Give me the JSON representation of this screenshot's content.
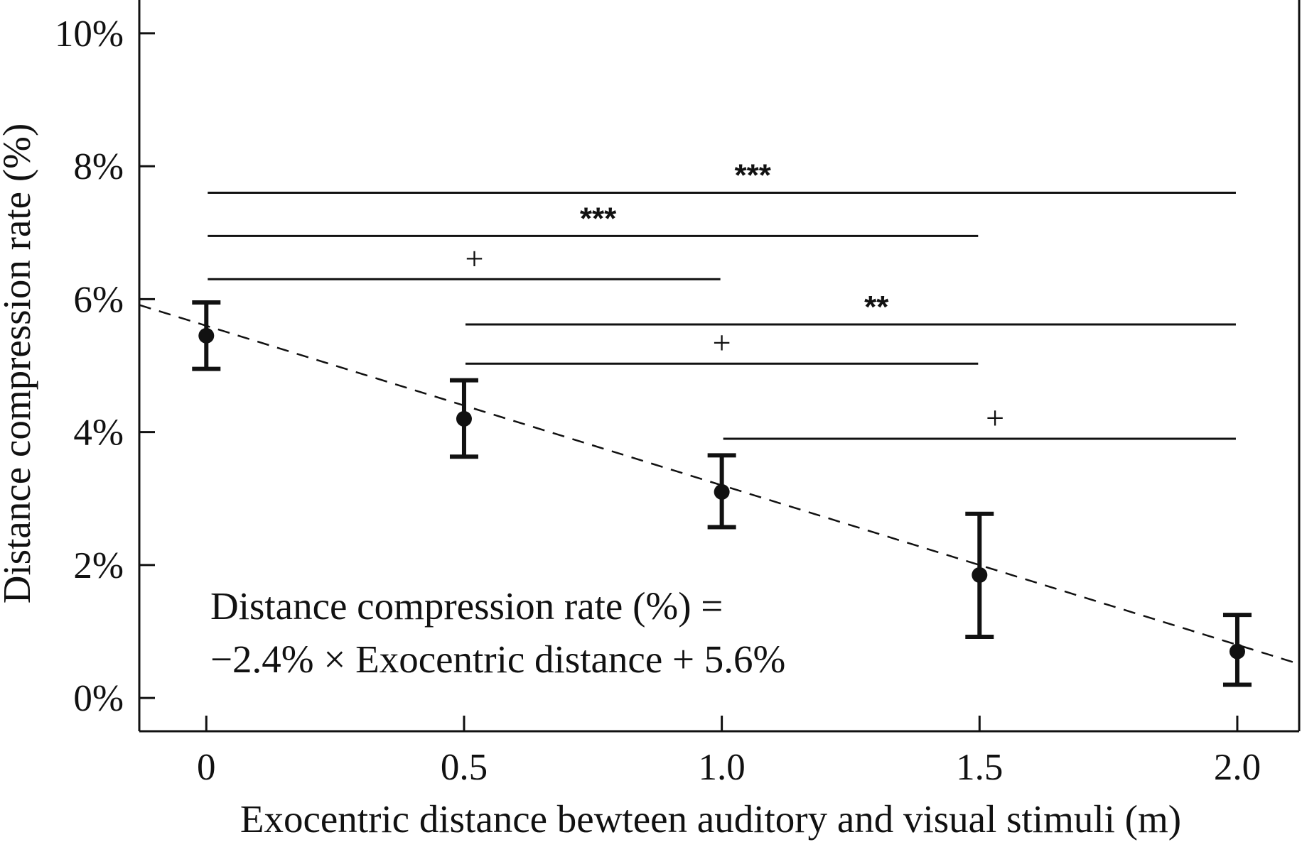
{
  "chart_data": {
    "type": "scatter",
    "title": "",
    "xlabel": "Exocentric distance bewteen auditory and visual stimuli (m)",
    "ylabel": "Distance compression rate (%)",
    "xlim": [
      -0.13,
      2.12
    ],
    "ylim": [
      -0.5,
      10.5
    ],
    "x_ticks": [
      0,
      0.5,
      1.0,
      1.5,
      2.0
    ],
    "x_tick_labels": [
      "0",
      "0.5",
      "1.0",
      "1.5",
      "2.0"
    ],
    "y_ticks": [
      0,
      2,
      4,
      6,
      8,
      10
    ],
    "y_tick_labels": [
      "0%",
      "2%",
      "4%",
      "6%",
      "8%",
      "10%"
    ],
    "grid": false,
    "series": [
      {
        "name": "Distance compression rate",
        "x": [
          0,
          0.5,
          1.0,
          1.5,
          2.0
        ],
        "y": [
          5.45,
          4.2,
          3.1,
          1.85,
          0.7
        ],
        "err_low": [
          4.95,
          3.63,
          2.57,
          0.92,
          0.2
        ],
        "err_high": [
          5.95,
          4.78,
          3.65,
          2.77,
          1.25
        ]
      }
    ],
    "fit_line": {
      "style": "dashed",
      "slope": -2.4,
      "intercept": 5.6
    },
    "equation_lines": [
      "Distance compression rate (%) =",
      "−2.4% × Exocentric distance + 5.6%"
    ],
    "significance": [
      {
        "x1": 0,
        "x2": 2.0,
        "y": 7.6,
        "label": "***",
        "label_x": 1.06,
        "stars": true
      },
      {
        "x1": 0,
        "x2": 1.5,
        "y": 6.95,
        "label": "***",
        "label_x": 0.76,
        "stars": true
      },
      {
        "x1": 0,
        "x2": 1.0,
        "y": 6.3,
        "label": "+",
        "label_x": 0.52,
        "stars": false
      },
      {
        "x1": 0.5,
        "x2": 2.0,
        "y": 5.62,
        "label": "**",
        "label_x": 1.3,
        "stars": true
      },
      {
        "x1": 0.5,
        "x2": 1.5,
        "y": 5.03,
        "label": "+",
        "label_x": 1.0,
        "stars": false
      },
      {
        "x1": 1.0,
        "x2": 2.0,
        "y": 3.9,
        "label": "+",
        "label_x": 1.53,
        "stars": false
      }
    ]
  }
}
